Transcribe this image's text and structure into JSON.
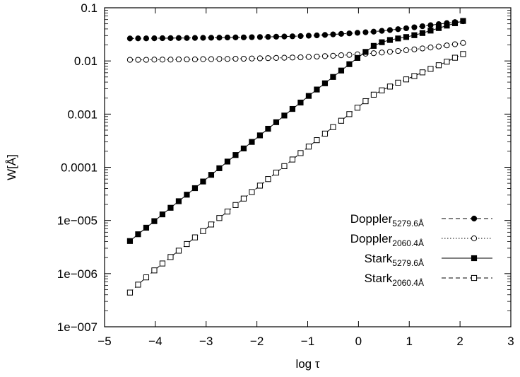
{
  "chart_data": {
    "type": "line",
    "xlabel": "log τ",
    "ylabel": "W[Å]",
    "xlim": [
      -5,
      3
    ],
    "ylim": [
      1e-07,
      0.1
    ],
    "yscale": "log",
    "grid": false,
    "legend_position": "bottom-right",
    "x_ticks": [
      -5,
      -4,
      -3,
      -2,
      -1,
      0,
      1,
      2,
      3
    ],
    "x_tick_labels": [
      "−5",
      "−4",
      "−3",
      "−2",
      "−1",
      "0",
      "1",
      "2",
      "3"
    ],
    "y_ticks": [
      1e-07,
      1e-06,
      1e-05,
      0.0001,
      0.001,
      0.01,
      0.1
    ],
    "y_tick_labels": [
      "1e−007",
      "1e−006",
      "1e−005",
      "0.0001",
      "0.001",
      "0.01",
      "0.1"
    ],
    "series": [
      {
        "name": "Doppler",
        "sub": "5279.6Å",
        "line": "dashed",
        "marker": "circle",
        "filled": true,
        "color": "#000000",
        "x": [
          -4.5,
          -4.34,
          -4.18,
          -4.02,
          -3.86,
          -3.7,
          -3.54,
          -3.38,
          -3.22,
          -3.06,
          -2.9,
          -2.74,
          -2.58,
          -2.42,
          -2.26,
          -2.1,
          -1.94,
          -1.78,
          -1.62,
          -1.46,
          -1.3,
          -1.14,
          -0.98,
          -0.82,
          -0.66,
          -0.5,
          -0.34,
          -0.18,
          -0.02,
          0.14,
          0.3,
          0.46,
          0.62,
          0.78,
          0.94,
          1.1,
          1.26,
          1.42,
          1.58,
          1.74,
          1.9,
          2.06
        ],
        "y": [
          0.0265,
          0.0266,
          0.0266,
          0.0267,
          0.0268,
          0.0269,
          0.027,
          0.027,
          0.0271,
          0.0272,
          0.0273,
          0.0274,
          0.0276,
          0.0277,
          0.0278,
          0.028,
          0.0282,
          0.0284,
          0.0286,
          0.0288,
          0.0291,
          0.0294,
          0.0298,
          0.0303,
          0.0309,
          0.0316,
          0.0323,
          0.033,
          0.0338,
          0.0346,
          0.0356,
          0.0368,
          0.0381,
          0.0396,
          0.0412,
          0.043,
          0.045,
          0.047,
          0.0492,
          0.0515,
          0.0538,
          0.0558
        ]
      },
      {
        "name": "Doppler",
        "sub": "2060.4Å",
        "line": "dotted",
        "marker": "circle",
        "filled": false,
        "color": "#000000",
        "x": [
          -4.5,
          -4.34,
          -4.18,
          -4.02,
          -3.86,
          -3.7,
          -3.54,
          -3.38,
          -3.22,
          -3.06,
          -2.9,
          -2.74,
          -2.58,
          -2.42,
          -2.26,
          -2.1,
          -1.94,
          -1.78,
          -1.62,
          -1.46,
          -1.3,
          -1.14,
          -0.98,
          -0.82,
          -0.66,
          -0.5,
          -0.34,
          -0.18,
          -0.02,
          0.14,
          0.3,
          0.46,
          0.62,
          0.78,
          0.94,
          1.1,
          1.26,
          1.42,
          1.58,
          1.74,
          1.9,
          2.06
        ],
        "y": [
          0.0105,
          0.0105,
          0.0105,
          0.0106,
          0.0106,
          0.0106,
          0.0107,
          0.0107,
          0.0107,
          0.0108,
          0.0108,
          0.0109,
          0.0109,
          0.011,
          0.011,
          0.0111,
          0.0112,
          0.0113,
          0.0114,
          0.0115,
          0.0116,
          0.0117,
          0.0119,
          0.0121,
          0.0123,
          0.0125,
          0.0128,
          0.013,
          0.0133,
          0.0137,
          0.014,
          0.0144,
          0.0149,
          0.0154,
          0.0159,
          0.0165,
          0.0172,
          0.0179,
          0.0187,
          0.0196,
          0.0206,
          0.0218
        ]
      },
      {
        "name": "Stark",
        "sub": "5279.6Å",
        "line": "solid",
        "marker": "square",
        "filled": true,
        "color": "#000000",
        "x": [
          -4.5,
          -4.34,
          -4.18,
          -4.02,
          -3.86,
          -3.7,
          -3.54,
          -3.38,
          -3.22,
          -3.06,
          -2.9,
          -2.74,
          -2.58,
          -2.42,
          -2.26,
          -2.1,
          -1.94,
          -1.78,
          -1.62,
          -1.46,
          -1.3,
          -1.14,
          -0.98,
          -0.82,
          -0.66,
          -0.5,
          -0.34,
          -0.18,
          -0.02,
          0.14,
          0.3,
          0.46,
          0.62,
          0.78,
          0.94,
          1.1,
          1.26,
          1.42,
          1.58,
          1.74,
          1.9,
          2.06
        ],
        "y": [
          4.1e-06,
          5.5e-06,
          7.3e-06,
          9.7e-06,
          1.3e-05,
          1.73e-05,
          2.3e-05,
          3.05e-05,
          4.05e-05,
          5.4e-05,
          7.2e-05,
          9.6e-05,
          0.000128,
          0.00017,
          0.000226,
          0.0003,
          0.000398,
          0.00053,
          0.000705,
          0.00094,
          0.00125,
          0.00165,
          0.0022,
          0.0029,
          0.0038,
          0.005,
          0.0066,
          0.0087,
          0.0114,
          0.0148,
          0.0192,
          0.0225,
          0.0248,
          0.0265,
          0.0282,
          0.0305,
          0.0335,
          0.0372,
          0.0415,
          0.0462,
          0.0512,
          0.0565
        ]
      },
      {
        "name": "Stark",
        "sub": "2060.4Å",
        "line": "dashed",
        "marker": "square",
        "filled": false,
        "color": "#000000",
        "x": [
          -4.5,
          -4.34,
          -4.18,
          -4.02,
          -3.86,
          -3.7,
          -3.54,
          -3.38,
          -3.22,
          -3.06,
          -2.9,
          -2.74,
          -2.58,
          -2.42,
          -2.26,
          -2.1,
          -1.94,
          -1.78,
          -1.62,
          -1.46,
          -1.3,
          -1.14,
          -0.98,
          -0.82,
          -0.66,
          -0.5,
          -0.34,
          -0.18,
          -0.02,
          0.14,
          0.3,
          0.46,
          0.62,
          0.78,
          0.94,
          1.1,
          1.26,
          1.42,
          1.58,
          1.74,
          1.9,
          2.06
        ],
        "y": [
          4.4e-07,
          6.2e-07,
          8.5e-07,
          1.15e-06,
          1.55e-06,
          2.05e-06,
          2.7e-06,
          3.6e-06,
          4.8e-06,
          6.3e-06,
          8.4e-06,
          1.11e-05,
          1.47e-05,
          1.95e-05,
          2.58e-05,
          3.42e-05,
          4.52e-05,
          6e-05,
          7.95e-05,
          0.000105,
          0.00014,
          0.000185,
          0.000245,
          0.000324,
          0.00043,
          0.00057,
          0.00075,
          0.001,
          0.00132,
          0.00175,
          0.00232,
          0.0028,
          0.0033,
          0.0039,
          0.0045,
          0.0052,
          0.0061,
          0.0071,
          0.0083,
          0.0097,
          0.0115,
          0.0135
        ]
      }
    ]
  }
}
